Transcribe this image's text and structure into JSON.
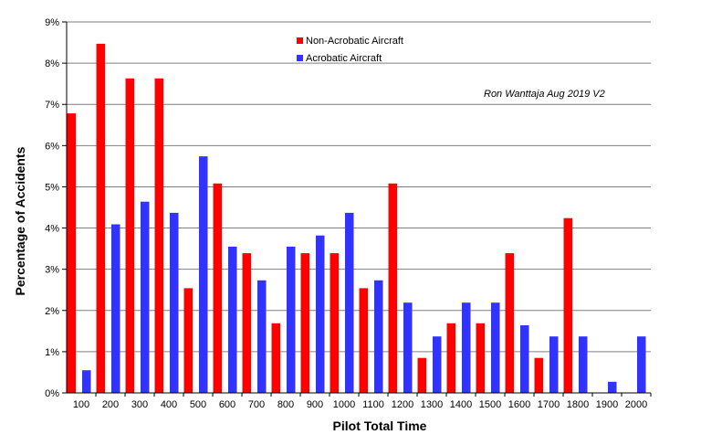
{
  "chart_data": {
    "type": "bar",
    "xlabel": "Pilot Total Time",
    "ylabel": "Percentage of Accidents",
    "annotation": "Ron Wanttaja Aug 2019 V2",
    "ylim": [
      0,
      9
    ],
    "y_ticks": [
      "0%",
      "1%",
      "2%",
      "3%",
      "4%",
      "5%",
      "6%",
      "7%",
      "8%",
      "9%"
    ],
    "grid": true,
    "legend_position": "top-center",
    "categories": [
      "100",
      "200",
      "300",
      "400",
      "500",
      "600",
      "700",
      "800",
      "900",
      "1000",
      "1100",
      "1200",
      "1300",
      "1400",
      "1500",
      "1600",
      "1700",
      "1800",
      "1900",
      "2000"
    ],
    "series": [
      {
        "name": "Non-Acrobatic Aircraft",
        "color": "#ff0000",
        "values": [
          6.78,
          8.47,
          7.63,
          7.63,
          2.54,
          5.08,
          3.39,
          1.69,
          3.39,
          3.39,
          2.54,
          5.08,
          0.85,
          1.69,
          1.69,
          3.39,
          0.85,
          4.24,
          0,
          0
        ]
      },
      {
        "name": "Acrobatic Aircraft",
        "color": "#3333ff",
        "values": [
          0.55,
          4.09,
          4.64,
          4.37,
          5.74,
          3.55,
          2.73,
          3.55,
          3.82,
          4.37,
          2.73,
          2.19,
          1.37,
          2.19,
          2.19,
          1.64,
          1.37,
          1.37,
          0.27,
          1.37
        ]
      }
    ]
  }
}
